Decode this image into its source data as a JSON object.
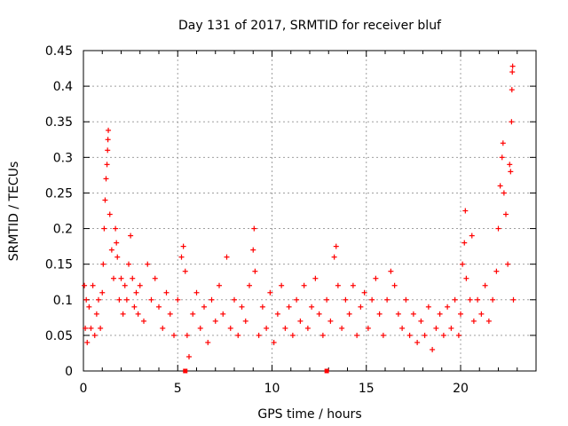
{
  "chart_data": {
    "type": "scatter",
    "title": "Day 131 of 2017, SRMTID for receiver bluf",
    "xlabel": "GPS time / hours",
    "ylabel": "SRMTID / TECUs",
    "xlim": [
      0,
      24
    ],
    "ylim": [
      0,
      0.45
    ],
    "xticks": [
      0,
      5,
      10,
      15,
      20
    ],
    "xtick_labels": [
      "0",
      "5",
      "10",
      "15",
      "20"
    ],
    "yticks": [
      0,
      0.05,
      0.1,
      0.15,
      0.2,
      0.25,
      0.3,
      0.35,
      0.4,
      0.45
    ],
    "ytick_labels": [
      "0",
      "0.05",
      "0.1",
      "0.15",
      "0.2",
      "0.25",
      "0.3",
      "0.35",
      "0.4",
      "0.45"
    ],
    "grid": true,
    "marker": "+",
    "color": "#ff0000",
    "series": [
      {
        "name": "SRMTID",
        "points": [
          [
            0.05,
            0.12
          ],
          [
            0.1,
            0.06
          ],
          [
            0.15,
            0.1
          ],
          [
            0.2,
            0.04
          ],
          [
            0.3,
            0.09
          ],
          [
            0.4,
            0.06
          ],
          [
            0.5,
            0.12
          ],
          [
            0.6,
            0.05
          ],
          [
            0.7,
            0.08
          ],
          [
            0.8,
            0.1
          ],
          [
            0.9,
            0.06
          ],
          [
            1.0,
            0.11
          ],
          [
            1.05,
            0.15
          ],
          [
            1.1,
            0.2
          ],
          [
            1.15,
            0.24
          ],
          [
            1.2,
            0.27
          ],
          [
            1.25,
            0.29
          ],
          [
            1.28,
            0.31
          ],
          [
            1.3,
            0.325
          ],
          [
            1.32,
            0.338
          ],
          [
            1.4,
            0.22
          ],
          [
            1.5,
            0.17
          ],
          [
            1.6,
            0.13
          ],
          [
            1.7,
            0.2
          ],
          [
            1.75,
            0.18
          ],
          [
            1.8,
            0.16
          ],
          [
            1.9,
            0.1
          ],
          [
            2.0,
            0.13
          ],
          [
            2.1,
            0.08
          ],
          [
            2.2,
            0.12
          ],
          [
            2.3,
            0.1
          ],
          [
            2.4,
            0.15
          ],
          [
            2.5,
            0.19
          ],
          [
            2.6,
            0.13
          ],
          [
            2.7,
            0.09
          ],
          [
            2.8,
            0.11
          ],
          [
            2.9,
            0.08
          ],
          [
            3.0,
            0.12
          ],
          [
            3.2,
            0.07
          ],
          [
            3.4,
            0.15
          ],
          [
            3.6,
            0.1
          ],
          [
            3.8,
            0.13
          ],
          [
            4.0,
            0.09
          ],
          [
            4.2,
            0.06
          ],
          [
            4.4,
            0.11
          ],
          [
            4.6,
            0.08
          ],
          [
            4.8,
            0.05
          ],
          [
            5.0,
            0.1
          ],
          [
            5.2,
            0.16
          ],
          [
            5.3,
            0.175
          ],
          [
            5.4,
            0.14
          ],
          [
            5.5,
            0.05
          ],
          [
            5.6,
            0.02
          ],
          [
            5.8,
            0.08
          ],
          [
            6.0,
            0.11
          ],
          [
            6.2,
            0.06
          ],
          [
            6.4,
            0.09
          ],
          [
            6.6,
            0.04
          ],
          [
            6.8,
            0.1
          ],
          [
            7.0,
            0.07
          ],
          [
            7.2,
            0.12
          ],
          [
            7.4,
            0.08
          ],
          [
            7.6,
            0.16
          ],
          [
            7.8,
            0.06
          ],
          [
            8.0,
            0.1
          ],
          [
            8.2,
            0.05
          ],
          [
            8.4,
            0.09
          ],
          [
            8.6,
            0.07
          ],
          [
            8.8,
            0.12
          ],
          [
            9.0,
            0.17
          ],
          [
            9.05,
            0.2
          ],
          [
            9.1,
            0.14
          ],
          [
            9.3,
            0.05
          ],
          [
            9.5,
            0.09
          ],
          [
            9.7,
            0.06
          ],
          [
            9.9,
            0.11
          ],
          [
            10.1,
            0.04
          ],
          [
            10.3,
            0.08
          ],
          [
            10.5,
            0.12
          ],
          [
            10.7,
            0.06
          ],
          [
            10.9,
            0.09
          ],
          [
            11.1,
            0.05
          ],
          [
            11.3,
            0.1
          ],
          [
            11.5,
            0.07
          ],
          [
            11.7,
            0.12
          ],
          [
            11.9,
            0.06
          ],
          [
            12.1,
            0.09
          ],
          [
            12.3,
            0.13
          ],
          [
            12.5,
            0.08
          ],
          [
            12.7,
            0.05
          ],
          [
            12.9,
            0.1
          ],
          [
            13.1,
            0.07
          ],
          [
            13.3,
            0.16
          ],
          [
            13.4,
            0.175
          ],
          [
            13.5,
            0.12
          ],
          [
            13.7,
            0.06
          ],
          [
            13.9,
            0.1
          ],
          [
            14.1,
            0.08
          ],
          [
            14.3,
            0.12
          ],
          [
            14.5,
            0.05
          ],
          [
            14.7,
            0.09
          ],
          [
            14.9,
            0.11
          ],
          [
            15.1,
            0.06
          ],
          [
            15.3,
            0.1
          ],
          [
            15.5,
            0.13
          ],
          [
            15.7,
            0.08
          ],
          [
            15.9,
            0.05
          ],
          [
            16.1,
            0.1
          ],
          [
            16.3,
            0.14
          ],
          [
            16.5,
            0.12
          ],
          [
            16.7,
            0.08
          ],
          [
            16.9,
            0.06
          ],
          [
            17.1,
            0.1
          ],
          [
            17.3,
            0.05
          ],
          [
            17.5,
            0.08
          ],
          [
            17.7,
            0.04
          ],
          [
            17.9,
            0.07
          ],
          [
            18.1,
            0.05
          ],
          [
            18.3,
            0.09
          ],
          [
            18.5,
            0.03
          ],
          [
            18.7,
            0.06
          ],
          [
            18.9,
            0.08
          ],
          [
            19.1,
            0.05
          ],
          [
            19.3,
            0.09
          ],
          [
            19.5,
            0.06
          ],
          [
            19.7,
            0.1
          ],
          [
            19.9,
            0.05
          ],
          [
            20.0,
            0.08
          ],
          [
            20.1,
            0.15
          ],
          [
            20.2,
            0.18
          ],
          [
            20.25,
            0.225
          ],
          [
            20.3,
            0.13
          ],
          [
            20.5,
            0.1
          ],
          [
            20.6,
            0.19
          ],
          [
            20.7,
            0.07
          ],
          [
            20.9,
            0.1
          ],
          [
            21.1,
            0.08
          ],
          [
            21.3,
            0.12
          ],
          [
            21.5,
            0.07
          ],
          [
            21.7,
            0.1
          ],
          [
            21.9,
            0.14
          ],
          [
            22.0,
            0.2
          ],
          [
            22.1,
            0.26
          ],
          [
            22.2,
            0.3
          ],
          [
            22.25,
            0.32
          ],
          [
            22.3,
            0.25
          ],
          [
            22.4,
            0.22
          ],
          [
            22.5,
            0.15
          ],
          [
            22.6,
            0.29
          ],
          [
            22.65,
            0.28
          ],
          [
            22.7,
            0.35
          ],
          [
            22.72,
            0.395
          ],
          [
            22.74,
            0.42
          ],
          [
            22.76,
            0.428
          ],
          [
            22.8,
            0.1
          ]
        ]
      }
    ],
    "zero_markers": [
      5.4,
      12.9
    ]
  }
}
